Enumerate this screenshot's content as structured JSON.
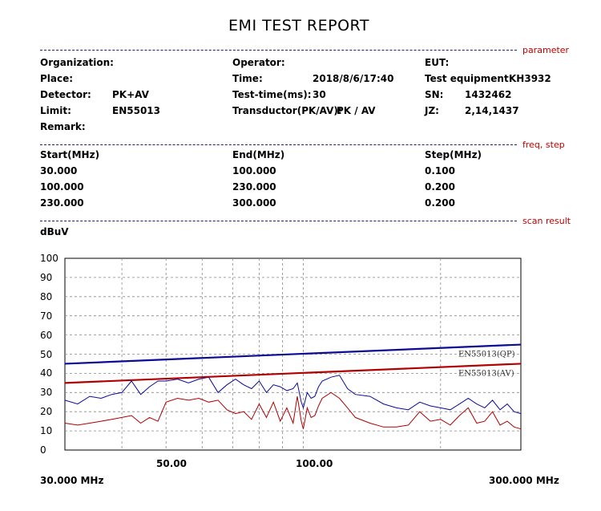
{
  "header": {
    "title": "EMI TEST REPORT"
  },
  "sections": {
    "parameter": "parameter",
    "freq_step": "freq, step",
    "scan_result": "scan result"
  },
  "params": {
    "organization_label": "Organization:",
    "organization_value": "",
    "operator_label": "Operator:",
    "operator_value": "",
    "eut_label": "EUT:",
    "eut_value": "",
    "place_label": "Place:",
    "place_value": "",
    "time_label": "Time:",
    "time_value": "2018/8/6/17:40",
    "test_equipment_label": "Test equipment:",
    "test_equipment_value": "KH3932",
    "detector_label": "Detector:",
    "detector_value": "PK+AV",
    "test_time_label": "Test-time(ms):",
    "test_time_value": "30",
    "sn_label": "SN:",
    "sn_value": "1432462",
    "limit_label": "Limit:",
    "limit_value": "EN55013",
    "transductor_label": "Transductor(PK/AV):",
    "transductor_value": "PK  /  AV",
    "jz_label": "JZ:",
    "jz_value": "2,14,1437",
    "remark_label": "Remark:",
    "remark_value": ""
  },
  "freq_table": {
    "headers": [
      "Start(MHz)",
      "End(MHz)",
      "Step(MHz)"
    ],
    "rows": [
      [
        "30.000",
        "100.000",
        "0.100"
      ],
      [
        "100.000",
        "230.000",
        "0.200"
      ],
      [
        "230.000",
        "300.000",
        "0.200"
      ]
    ]
  },
  "colors": {
    "qp": "#0a0a96",
    "av": "#b00000",
    "grid": "#8a8a8a",
    "section": "#c00000"
  },
  "chart_data": {
    "type": "line",
    "title": "",
    "ylabel": "dBuV",
    "xlabel": "",
    "xscale": "log",
    "xlim": [
      30,
      300
    ],
    "ylim": [
      0,
      100
    ],
    "grid": true,
    "y_ticks": [
      "100",
      "90",
      "80",
      "70",
      "60",
      "50",
      "40",
      "30",
      "20",
      "10",
      "0"
    ],
    "x_tick_labels": [
      "50.00",
      "100.00"
    ],
    "x_min_label": "30.000 MHz",
    "x_max_label": "300.000 MHz",
    "limit_lines": [
      {
        "name": "EN55013(QP)",
        "x": [
          30,
          300
        ],
        "y": [
          45,
          55
        ]
      },
      {
        "name": "EN55013(AV)",
        "x": [
          30,
          300
        ],
        "y": [
          35,
          45
        ]
      }
    ],
    "series": [
      {
        "detector": "PK",
        "x": [
          30,
          32,
          34,
          36,
          38,
          40,
          42,
          44,
          46,
          48,
          50,
          53,
          56,
          59,
          62,
          65,
          68,
          71,
          74,
          77,
          80,
          83,
          86,
          89,
          92,
          95,
          97,
          99,
          100,
          102,
          104,
          106,
          108,
          110,
          115,
          120,
          125,
          130,
          140,
          150,
          160,
          170,
          180,
          190,
          200,
          210,
          220,
          230,
          240,
          250,
          260,
          270,
          280,
          290,
          300
        ],
        "y": [
          26,
          24,
          28,
          27,
          29,
          30,
          36,
          29,
          33,
          36,
          36,
          37,
          35,
          37,
          38,
          30,
          34,
          37,
          34,
          32,
          36,
          30,
          34,
          33,
          31,
          32,
          35,
          25,
          22,
          30,
          27,
          28,
          33,
          36,
          38,
          39,
          32,
          29,
          28,
          24,
          22,
          21,
          25,
          23,
          22,
          21,
          24,
          27,
          24,
          22,
          26,
          21,
          24,
          20,
          19
        ]
      },
      {
        "detector": "AV",
        "x": [
          30,
          32,
          34,
          36,
          38,
          40,
          42,
          44,
          46,
          48,
          50,
          53,
          56,
          59,
          62,
          65,
          68,
          71,
          74,
          77,
          80,
          83,
          86,
          89,
          92,
          95,
          97,
          99,
          100,
          102,
          104,
          106,
          108,
          110,
          115,
          120,
          125,
          130,
          140,
          150,
          160,
          170,
          180,
          190,
          200,
          210,
          220,
          230,
          240,
          250,
          260,
          270,
          280,
          290,
          300
        ],
        "y": [
          14,
          13,
          14,
          15,
          16,
          17,
          18,
          14,
          17,
          15,
          25,
          27,
          26,
          27,
          25,
          26,
          21,
          19,
          20,
          16,
          24,
          17,
          25,
          15,
          22,
          14,
          28,
          15,
          11,
          22,
          17,
          18,
          23,
          27,
          30,
          27,
          22,
          17,
          14,
          12,
          12,
          13,
          20,
          15,
          16,
          13,
          18,
          22,
          14,
          15,
          20,
          13,
          15,
          12,
          11
        ]
      }
    ]
  }
}
